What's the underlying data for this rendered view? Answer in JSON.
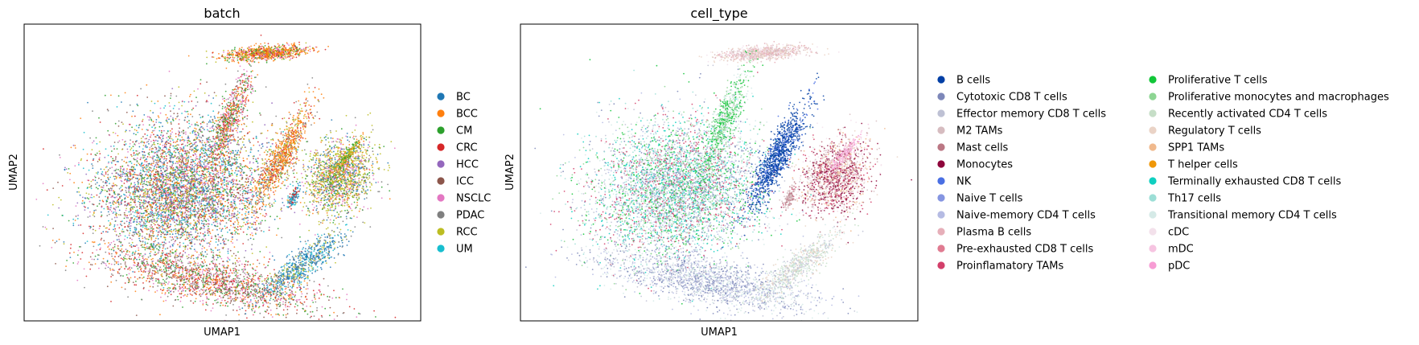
{
  "chart_data": [
    {
      "type": "scatter",
      "title": "batch",
      "xlabel": "UMAP1",
      "ylabel": "UMAP2",
      "grid": false,
      "legend_position": "right",
      "legend": [
        {
          "label": "BC",
          "color": "#1f77b4"
        },
        {
          "label": "BCC",
          "color": "#ff7f0e"
        },
        {
          "label": "CM",
          "color": "#2ca02c"
        },
        {
          "label": "CRC",
          "color": "#d62728"
        },
        {
          "label": "HCC",
          "color": "#9467bd"
        },
        {
          "label": "ICC",
          "color": "#8c564b"
        },
        {
          "label": "NSCLC",
          "color": "#e377c2"
        },
        {
          "label": "PDAC",
          "color": "#7f7f7f"
        },
        {
          "label": "RCC",
          "color": "#bcbd22"
        },
        {
          "label": "UM",
          "color": "#17becf"
        }
      ]
    },
    {
      "type": "scatter",
      "title": "cell_type",
      "xlabel": "UMAP1",
      "ylabel": "UMAP2",
      "grid": false,
      "legend_position": "right",
      "legend": [
        {
          "label": "B cells",
          "color": "#023fa5"
        },
        {
          "label": "Cytotoxic CD8 T cells",
          "color": "#7d87b9"
        },
        {
          "label": "Effector memory CD8 T cells",
          "color": "#bec1d4"
        },
        {
          "label": "M2 TAMs",
          "color": "#d6bcc0"
        },
        {
          "label": "Mast cells",
          "color": "#bb7784"
        },
        {
          "label": "Monocytes",
          "color": "#8e063b"
        },
        {
          "label": "NK",
          "color": "#4a6fe3"
        },
        {
          "label": "Naive T cells",
          "color": "#8595e1"
        },
        {
          "label": "Naive-memory CD4 T cells",
          "color": "#b5bbe3"
        },
        {
          "label": "Plasma B cells",
          "color": "#e6afb9"
        },
        {
          "label": "Pre-exhausted CD8 T cells",
          "color": "#e07b91"
        },
        {
          "label": "Proinflamatory TAMs",
          "color": "#d33f6a"
        },
        {
          "label": "Proliferative T cells",
          "color": "#11c638"
        },
        {
          "label": "Proliferative monocytes and macrophages",
          "color": "#8dd593"
        },
        {
          "label": "Recently activated CD4 T cells",
          "color": "#c6dec7"
        },
        {
          "label": "Regulatory T cells",
          "color": "#ead3c6"
        },
        {
          "label": "SPP1 TAMs",
          "color": "#f0b98d"
        },
        {
          "label": "T helper cells",
          "color": "#ef9708"
        },
        {
          "label": "Terminally exhausted CD8 T cells",
          "color": "#0fcfc0"
        },
        {
          "label": "Th17 cells",
          "color": "#9cded6"
        },
        {
          "label": "Transitional memory CD4 T cells",
          "color": "#d5eae7"
        },
        {
          "label": "cDC",
          "color": "#f3e1eb"
        },
        {
          "label": "mDC",
          "color": "#f6c4e1"
        },
        {
          "label": "pDC",
          "color": "#f79cd4"
        }
      ]
    }
  ]
}
